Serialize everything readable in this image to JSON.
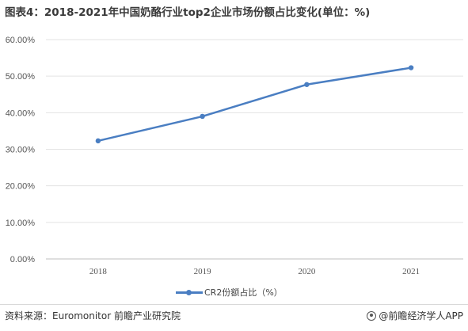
{
  "title": "图表4：2018-2021年中国奶酪行业top2企业市场份额占比变化(单位：%)",
  "chart_data": {
    "type": "line",
    "title": "图表4：2018-2021年中国奶酪行业top2企业市场份额占比变化(单位：%)",
    "categories": [
      "2018",
      "2019",
      "2020",
      "2021"
    ],
    "series": [
      {
        "name": "CR2份额占比（%）",
        "values": [
          32.3,
          39.0,
          47.7,
          52.3
        ],
        "color": "#4a7ec2"
      }
    ],
    "ylim": [
      0,
      60
    ],
    "yticks": [
      "0.00%",
      "10.00%",
      "20.00%",
      "30.00%",
      "40.00%",
      "50.00%",
      "60.00%"
    ],
    "grid": true,
    "legend_position": "bottom-center"
  },
  "legend_label": "CR2份额占比（%）",
  "source": "资料来源：Euromonitor 前瞻产业研究院",
  "credit": "@前瞻经济学人APP",
  "credit_icon": "qianzhan-logo-icon"
}
